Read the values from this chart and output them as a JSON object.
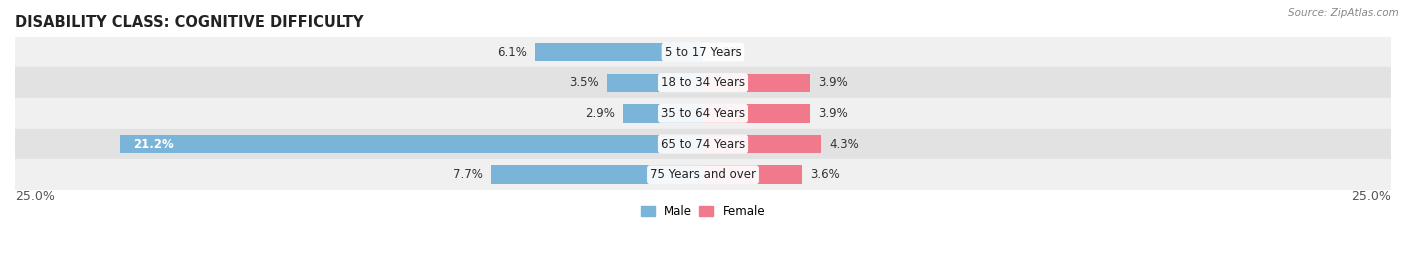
{
  "title": "DISABILITY CLASS: COGNITIVE DIFFICULTY",
  "source": "Source: ZipAtlas.com",
  "categories": [
    "5 to 17 Years",
    "18 to 34 Years",
    "35 to 64 Years",
    "65 to 74 Years",
    "75 Years and over"
  ],
  "male_values": [
    6.1,
    3.5,
    2.9,
    21.2,
    7.7
  ],
  "female_values": [
    0.0,
    3.9,
    3.9,
    4.3,
    3.6
  ],
  "male_color": "#7ab4d8",
  "female_color": "#f07a8c",
  "row_bg_even": "#f0f0f0",
  "row_bg_odd": "#e2e2e2",
  "max_value": 25.0,
  "axis_label_left": "25.0%",
  "axis_label_right": "25.0%",
  "title_fontsize": 10.5,
  "label_fontsize": 8.5,
  "cat_fontsize": 8.5,
  "tick_fontsize": 9,
  "bar_height": 0.6,
  "background_color": "#ffffff"
}
